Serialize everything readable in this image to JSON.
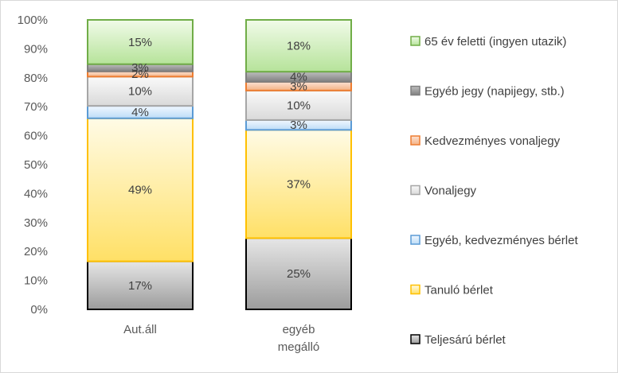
{
  "chart_data": {
    "type": "bar",
    "stacked": true,
    "percent_stacked": true,
    "categories": [
      "Aut.áll",
      "egyéb\nmegálló"
    ],
    "ylim": [
      0,
      100
    ],
    "yticks": [
      "0%",
      "10%",
      "20%",
      "30%",
      "40%",
      "50%",
      "60%",
      "70%",
      "80%",
      "90%",
      "100%"
    ],
    "grid": false,
    "legend_position": "right",
    "legend_order": [
      6,
      5,
      4,
      3,
      2,
      1,
      0
    ],
    "series": [
      {
        "name": "Teljesárú bérlet",
        "values": [
          16.6,
          24.6
        ],
        "labels": [
          "17%",
          "25%"
        ],
        "fill": "gray-gradient",
        "edge": "#000000"
      },
      {
        "name": "Tanuló bérlet",
        "values": [
          49.4,
          37.4
        ],
        "labels": [
          "49%",
          "37%"
        ],
        "fill": "yellow-gradient",
        "edge": "#ffc000"
      },
      {
        "name": "Egyéb, kedvezményes bérlet",
        "values": [
          4.3,
          3.4
        ],
        "labels": [
          "4%",
          "3%"
        ],
        "fill": "lightblue-gradient",
        "edge": "#5b9bd5"
      },
      {
        "name": "Vonaljegy",
        "values": [
          10.1,
          10.2
        ],
        "labels": [
          "10%",
          "10%"
        ],
        "fill": "lightgray-gradient",
        "edge": "#a6a6a6"
      },
      {
        "name": "Kedvezményes vonaljegy",
        "values": [
          1.8,
          3.0
        ],
        "labels": [
          "2%",
          "3%"
        ],
        "fill": "peach-gradient",
        "edge": "#ed7d31"
      },
      {
        "name": "Egyéb jegy (napijegy, stb.)",
        "values": [
          2.5,
          3.5
        ],
        "labels": [
          "3%",
          "4%"
        ],
        "fill": "darkgray-gradient",
        "edge": "#7f7f7f"
      },
      {
        "name": "65 év feletti (ingyen utazik)",
        "values": [
          15.3,
          17.9
        ],
        "labels": [
          "15%",
          "18%"
        ],
        "fill": "green-gradient",
        "edge": "#70ad47"
      }
    ]
  }
}
